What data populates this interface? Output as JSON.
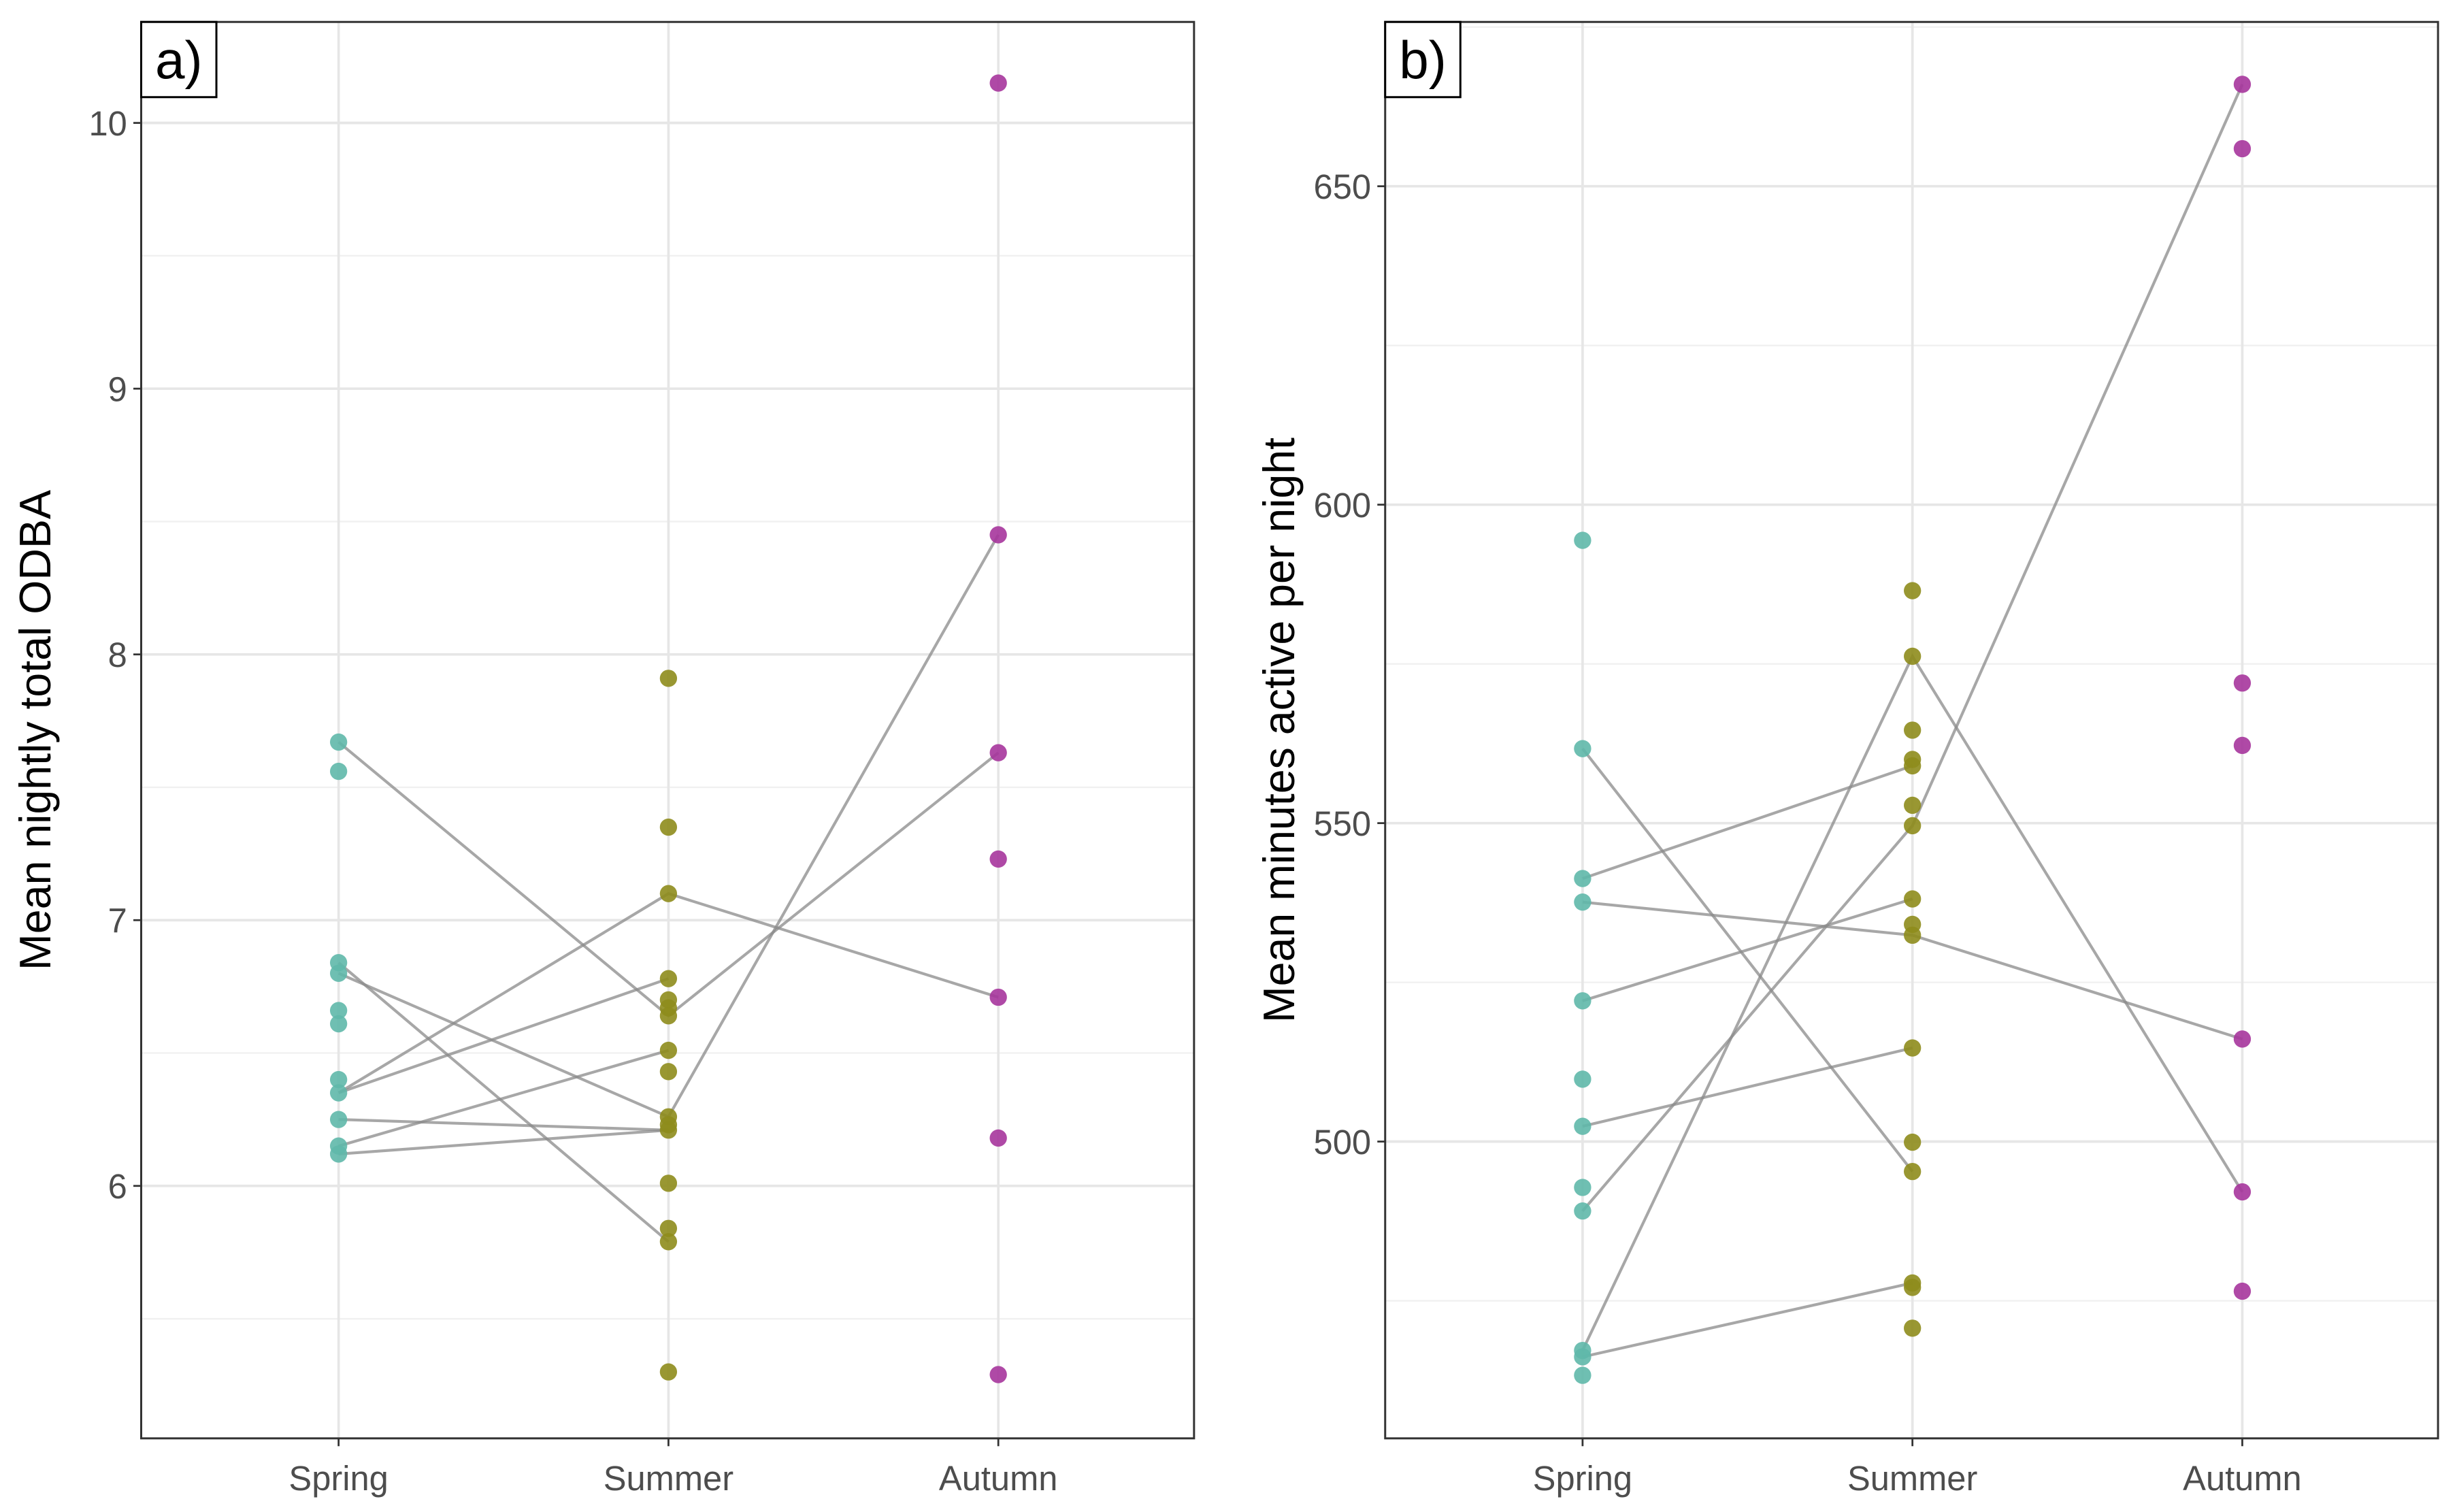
{
  "chart_data": [
    {
      "type": "scatter",
      "panel_label": "a)",
      "ylabel": "Mean nightly total ODBA",
      "xlabel": "",
      "categories": [
        "Spring",
        "Summer",
        "Autumn"
      ],
      "ylim": [
        5.05,
        10.38
      ],
      "yticks": [
        6,
        7,
        8,
        9,
        10
      ],
      "grid": true,
      "colors": {
        "Spring": "#5fb8aa",
        "Summer": "#8e8c1c",
        "Autumn": "#a6359c",
        "line": "#8a8a8a"
      },
      "points": {
        "Spring": [
          7.67,
          7.56,
          6.84,
          6.8,
          6.66,
          6.61,
          6.4,
          6.35,
          6.25,
          6.15,
          6.12
        ],
        "Summer": [
          7.91,
          7.35,
          7.1,
          6.78,
          6.7,
          6.67,
          6.64,
          6.51,
          6.43,
          6.26,
          6.23,
          6.21,
          6.01,
          5.84,
          5.79,
          5.3
        ],
        "Autumn": [
          10.15,
          8.45,
          7.63,
          7.23,
          6.71,
          6.18,
          5.29
        ]
      },
      "paths": [
        [
          7.67,
          6.64,
          7.63
        ],
        [
          6.35,
          7.1,
          6.71
        ],
        [
          6.35,
          6.78,
          null
        ],
        [
          6.8,
          6.26,
          8.45
        ],
        [
          6.84,
          5.79,
          null
        ],
        [
          6.25,
          6.21,
          null
        ],
        [
          6.15,
          6.51,
          null
        ],
        [
          6.12,
          6.21,
          null
        ]
      ]
    },
    {
      "type": "scatter",
      "panel_label": "b)",
      "ylabel": "Mean minutes active per night",
      "xlabel": "",
      "categories": [
        "Spring",
        "Summer",
        "Autumn"
      ],
      "ylim": [
        453.4,
        675.8
      ],
      "yticks": [
        500,
        550,
        600,
        650
      ],
      "grid": true,
      "colors": {
        "Spring": "#5fb8aa",
        "Summer": "#8e8c1c",
        "Autumn": "#a6359c",
        "line": "#8a8a8a"
      },
      "points": {
        "Spring": [
          594.4,
          561.7,
          541.3,
          537.6,
          522.1,
          509.8,
          502.4,
          492.8,
          489.1,
          467.2,
          466.2,
          463.3
        ],
        "Summer": [
          586.5,
          576.2,
          564.6,
          560.0,
          559.0,
          552.8,
          549.6,
          538.1,
          534.1,
          532.4,
          514.7,
          499.9,
          495.3,
          477.8,
          477.1,
          470.7
        ],
        "Autumn": [
          666.0,
          655.9,
          572.0,
          562.2,
          516.1,
          492.1,
          476.5
        ]
      },
      "paths": [
        [
          561.7,
          495.3,
          null
        ],
        [
          541.3,
          559.0,
          null
        ],
        [
          537.6,
          532.4,
          516.1
        ],
        [
          522.1,
          538.1,
          null
        ],
        [
          502.4,
          514.7,
          null
        ],
        [
          489.1,
          549.6,
          666.0
        ],
        [
          467.2,
          576.2,
          492.1
        ],
        [
          466.2,
          477.8,
          null
        ]
      ]
    }
  ]
}
